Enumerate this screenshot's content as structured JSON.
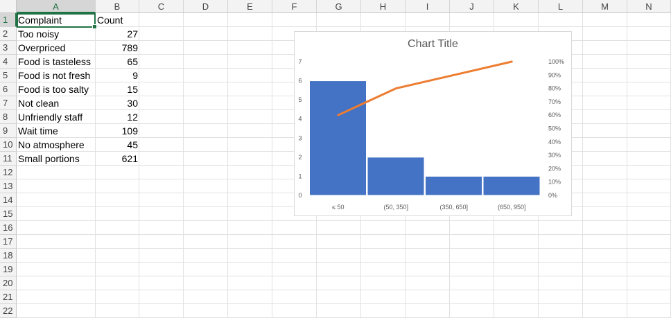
{
  "sheet": {
    "columns": [
      "A",
      "B",
      "C",
      "D",
      "E",
      "F",
      "G",
      "H",
      "I",
      "J",
      "K",
      "L",
      "M",
      "N"
    ],
    "rows": [
      "1",
      "2",
      "3",
      "4",
      "5",
      "6",
      "7",
      "8",
      "9",
      "10",
      "11",
      "12",
      "13",
      "14",
      "15",
      "16",
      "17",
      "18",
      "19",
      "20",
      "21",
      "22"
    ],
    "header": {
      "complaint": "Complaint",
      "count": "Count"
    },
    "data": [
      {
        "complaint": "Too noisy",
        "count": "27"
      },
      {
        "complaint": "Overpriced",
        "count": "789"
      },
      {
        "complaint": "Food is tasteless",
        "count": "65"
      },
      {
        "complaint": "Food is not fresh",
        "count": "9"
      },
      {
        "complaint": "Food is too salty",
        "count": "15"
      },
      {
        "complaint": "Not clean",
        "count": "30"
      },
      {
        "complaint": "Unfriendly staff",
        "count": "12"
      },
      {
        "complaint": "Wait time",
        "count": "109"
      },
      {
        "complaint": "No atmosphere",
        "count": "45"
      },
      {
        "complaint": "Small portions",
        "count": "621"
      }
    ],
    "selected_cell": "A1"
  },
  "chart_data": {
    "type": "bar",
    "title": "Chart Title",
    "categories": [
      "≤ 50",
      "(50, 350]",
      "(350, 650]",
      "(650, 950]"
    ],
    "series": [
      {
        "type": "bar",
        "values": [
          6,
          2,
          1,
          1
        ],
        "color": "#4472c4"
      },
      {
        "type": "line",
        "values": [
          0.6,
          0.8,
          0.9,
          1.0
        ],
        "color": "#ed7d31"
      }
    ],
    "y_left": {
      "min": 0,
      "max": 7,
      "ticks": [
        "0",
        "1",
        "2",
        "3",
        "4",
        "5",
        "6",
        "7"
      ]
    },
    "y_right": {
      "min": 0,
      "max": 1,
      "ticks": [
        "0%",
        "10%",
        "20%",
        "30%",
        "40%",
        "50%",
        "60%",
        "70%",
        "80%",
        "90%",
        "100%"
      ]
    },
    "grid": false
  }
}
